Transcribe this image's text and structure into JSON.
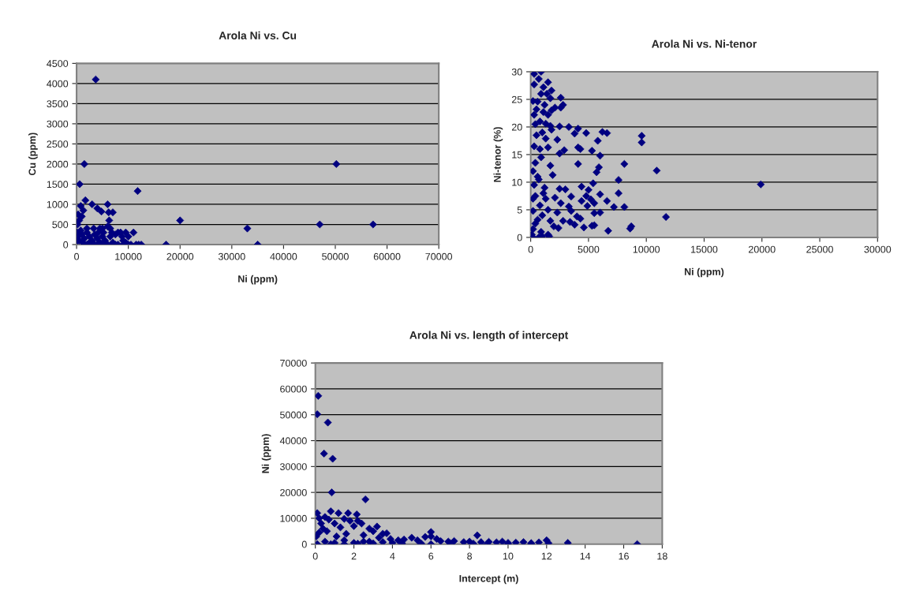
{
  "chart_data": [
    {
      "type": "scatter",
      "title": "Arola Ni vs. Cu",
      "xlabel": "Ni (ppm)",
      "ylabel": "Cu (ppm)",
      "xlim": [
        0,
        70000
      ],
      "xticks": [
        0,
        10000,
        20000,
        30000,
        40000,
        50000,
        60000,
        70000
      ],
      "ylim": [
        0,
        4500
      ],
      "yticks": [
        0,
        500,
        1000,
        1500,
        2000,
        2500,
        3000,
        3500,
        4000,
        4500
      ],
      "grid": "y",
      "marker": "diamond",
      "series": [
        {
          "color": "#000080",
          "x": [
            3700,
            1500,
            50200,
            600,
            11800,
            1700,
            800,
            3000,
            6000,
            4000,
            1300,
            4800,
            6200,
            7000,
            1000,
            300,
            6300,
            20000,
            33000,
            47000,
            57300,
            35000,
            17300,
            11500,
            12000,
            12500,
            10000,
            10500,
            9000,
            11000,
            10000,
            9500,
            8500,
            8000,
            7500,
            6500,
            6000,
            5000,
            4500,
            3300,
            2000,
            500,
            200,
            100,
            300,
            500,
            1000,
            1500,
            2000,
            2500,
            3000,
            3500,
            4000,
            4500,
            5000,
            5500,
            6000,
            6500,
            7000,
            7500,
            8000,
            9000,
            2000,
            4000,
            5000,
            200,
            800,
            1200,
            2500,
            3500,
            4200,
            5200,
            6800,
            8800,
            9500
          ],
          "values": [
            4100,
            2000,
            2000,
            1500,
            1330,
            1100,
            960,
            1000,
            1000,
            900,
            850,
            820,
            800,
            800,
            700,
            750,
            600,
            600,
            400,
            500,
            500,
            0,
            0,
            0,
            0,
            0,
            0,
            0,
            100,
            300,
            200,
            300,
            300,
            300,
            250,
            400,
            450,
            400,
            400,
            400,
            400,
            600,
            500,
            300,
            200,
            100,
            250,
            150,
            300,
            200,
            100,
            250,
            150,
            50,
            200,
            100,
            0,
            200,
            50,
            0,
            0,
            0,
            0,
            0,
            0,
            100,
            350,
            50,
            50,
            0,
            300,
            300,
            300,
            200,
            50
          ]
        }
      ]
    },
    {
      "type": "scatter",
      "title": "Arola Ni vs. Ni-tenor",
      "xlabel": "Ni (ppm)",
      "ylabel": "Ni-tenor (%)",
      "xlim": [
        0,
        30000
      ],
      "xticks": [
        0,
        5000,
        10000,
        15000,
        20000,
        25000,
        30000
      ],
      "ylim": [
        0,
        30
      ],
      "yticks": [
        0,
        5,
        10,
        15,
        20,
        25,
        30
      ],
      "grid": "y",
      "marker": "diamond",
      "series": [
        {
          "color": "#000080",
          "x": [
            300,
            900,
            700,
            1500,
            300,
            1100,
            1800,
            900,
            1400,
            1700,
            2600,
            200,
            600,
            2800,
            1200,
            2600,
            500,
            1800,
            2100,
            1100,
            300,
            1500,
            800,
            1300,
            2500,
            3300,
            1700,
            400,
            1800,
            4100,
            4800,
            6200,
            6600,
            3800,
            9600,
            9600,
            5800,
            2300,
            1300,
            500,
            300,
            1500,
            4100,
            4300,
            2900,
            5300,
            2500,
            6000,
            900,
            400,
            1700,
            4100,
            8100,
            5900,
            10900,
            5700,
            200,
            1900,
            700,
            7600,
            5400,
            19900,
            4400,
            300,
            1200,
            3000,
            2500,
            5000,
            7600,
            4800,
            6000,
            3500,
            2100,
            1300,
            200,
            5200,
            4400,
            6600,
            2600,
            5500,
            3300,
            800,
            4900,
            7200,
            8100,
            1500,
            200,
            3500,
            2300,
            5500,
            6000,
            1000,
            4000,
            11700,
            4300,
            600,
            1700,
            2800,
            3400,
            3800,
            2000,
            5300,
            5500,
            8700,
            8600,
            4600,
            2400,
            6700,
            200,
            900,
            100,
            1500,
            700,
            1000,
            1600,
            200,
            400,
            600,
            800,
            1000,
            1100,
            400
          ],
          "values": [
            29.6,
            30,
            28.7,
            28.1,
            27.7,
            27.2,
            26.6,
            26,
            26,
            25.2,
            25.3,
            24.7,
            24.6,
            24,
            24,
            23.5,
            23.2,
            23,
            23.5,
            22.7,
            22.2,
            22.2,
            21,
            20.6,
            20.1,
            20,
            20.2,
            20.5,
            19.5,
            19.7,
            18.9,
            19.1,
            18.9,
            18.8,
            18.4,
            17.2,
            17.5,
            17.7,
            17.9,
            18.5,
            16.5,
            16.3,
            16.3,
            16,
            15.8,
            15.7,
            15.2,
            14.8,
            14.5,
            13.5,
            13,
            13.3,
            13.3,
            12.7,
            12.1,
            11.8,
            12,
            11.3,
            10.5,
            10.4,
            9.8,
            9.6,
            9.2,
            9.5,
            9,
            8.7,
            8.8,
            8.6,
            8,
            7.5,
            7.8,
            7.4,
            7.2,
            7,
            7,
            6.9,
            6.6,
            6.6,
            6.2,
            6.2,
            5.6,
            5.8,
            5.7,
            5.5,
            5.5,
            5,
            4.8,
            4.8,
            4.5,
            4.4,
            4.5,
            4,
            3.8,
            3.7,
            3.4,
            3.2,
            3,
            3,
            2.8,
            2.3,
            2,
            2.1,
            2.2,
            2,
            1.6,
            1.8,
            1.7,
            1.2,
            1.5,
            1,
            0.5,
            0.5,
            0,
            0.2,
            0.2,
            0,
            2.5,
            11,
            16,
            19,
            8,
            7.5
          ]
        }
      ]
    },
    {
      "type": "scatter",
      "title": "Arola Ni vs. length of intercept",
      "xlabel": "Intercept (m)",
      "ylabel": "Ni (ppm)",
      "xlim": [
        0,
        18
      ],
      "xticks": [
        0,
        2,
        4,
        6,
        8,
        10,
        12,
        14,
        16,
        18
      ],
      "ylim": [
        0,
        70000
      ],
      "yticks": [
        0,
        10000,
        20000,
        30000,
        40000,
        50000,
        60000,
        70000
      ],
      "grid": "y",
      "marker": "diamond",
      "series": [
        {
          "color": "#000080",
          "x": [
            0.15,
            0.1,
            0.65,
            0.45,
            0.9,
            0.85,
            2.6,
            0.1,
            0.8,
            1.2,
            1.7,
            2.15,
            0.2,
            0.5,
            1.0,
            0.7,
            1.5,
            1.8,
            2.4,
            2.2,
            0.3,
            0.4,
            0.6,
            1.3,
            2.0,
            2.8,
            3.2,
            3.0,
            3.5,
            3.7,
            0.05,
            0.2,
            1.1,
            1.6,
            2.5,
            3.3,
            3.9,
            4.3,
            4.6,
            5.0,
            5.3,
            5.7,
            6.0,
            6.0,
            6.3,
            6.5,
            6.9,
            7.2,
            7.7,
            8.0,
            8.4,
            8.6,
            9.0,
            9.4,
            9.7,
            10.0,
            10.0,
            10.4,
            10.8,
            11.2,
            11.6,
            12.0,
            12.1,
            13.1,
            16.7,
            0.5,
            1.0,
            1.5,
            2.0,
            2.5,
            3.0,
            3.5,
            4.0,
            4.5,
            5.5,
            6.0,
            7.0,
            8.2,
            8.9,
            11.2,
            0.1,
            0.8,
            1.5,
            2.2,
            2.8
          ],
          "values": [
            57300,
            50200,
            47000,
            35000,
            33000,
            20000,
            17300,
            12000,
            12700,
            12000,
            12000,
            11500,
            10000,
            10500,
            8000,
            9500,
            9800,
            9000,
            8000,
            9000,
            8000,
            6000,
            5000,
            6500,
            7000,
            6000,
            6800,
            5000,
            4000,
            4200,
            3000,
            4500,
            3000,
            4000,
            3500,
            2500,
            2000,
            1500,
            1800,
            2500,
            1500,
            2800,
            4700,
            3000,
            2000,
            1200,
            1000,
            1200,
            800,
            1000,
            3400,
            800,
            900,
            700,
            1000,
            500,
            0,
            600,
            800,
            400,
            700,
            1500,
            400,
            500,
            0,
            1000,
            500,
            1500,
            500,
            1000,
            300,
            800,
            500,
            300,
            200,
            0,
            300,
            200,
            0,
            0,
            0,
            0,
            0,
            200,
            1000
          ]
        }
      ]
    }
  ]
}
